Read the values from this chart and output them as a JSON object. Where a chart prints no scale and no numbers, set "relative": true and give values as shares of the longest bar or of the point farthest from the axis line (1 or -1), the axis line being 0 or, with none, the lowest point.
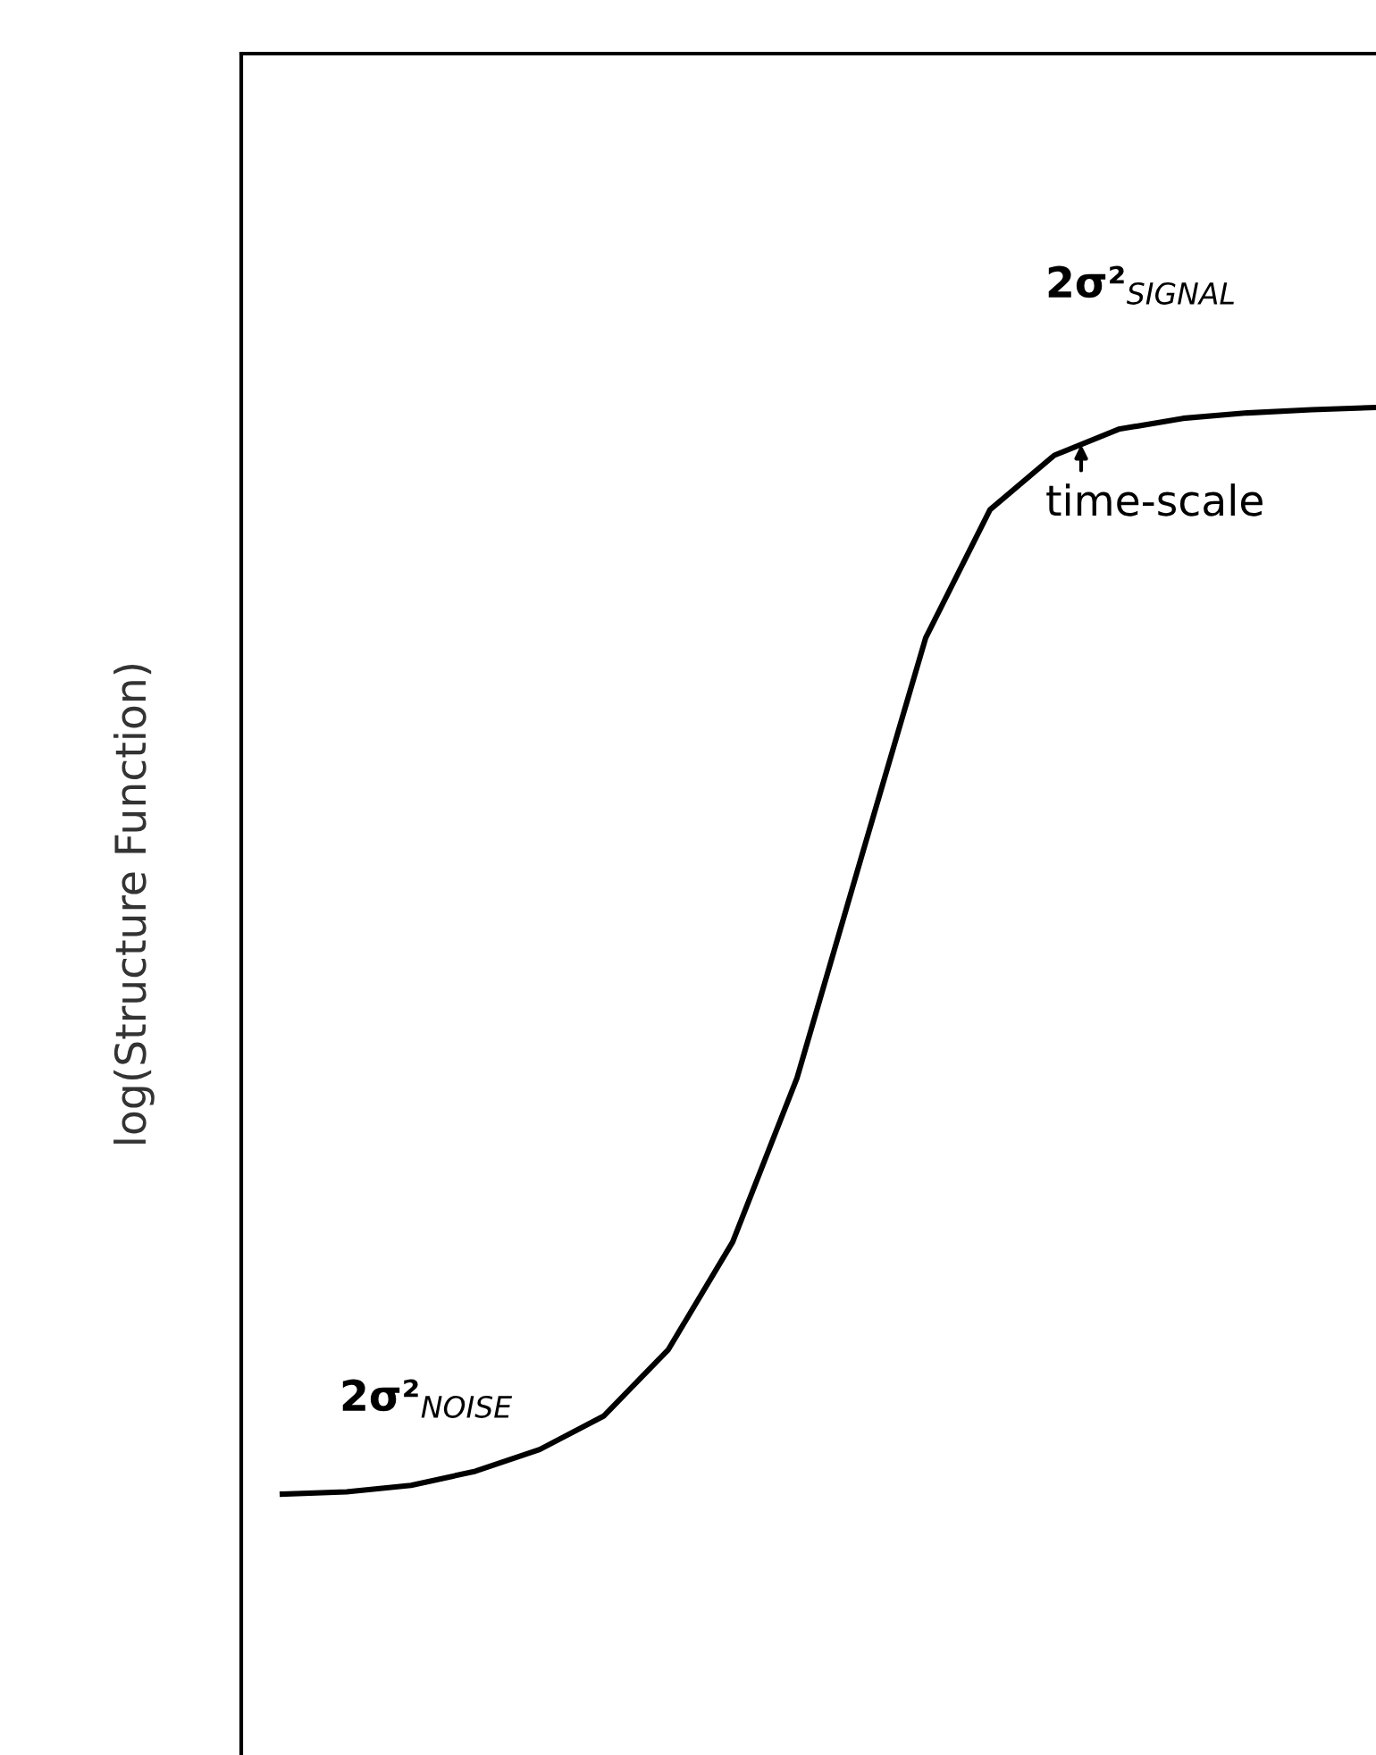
{
  "chart_data": {
    "type": "line",
    "relative": true,
    "ylabel": "log(Structure Function)",
    "categories": [
      null,
      null,
      null,
      null,
      null,
      null,
      null,
      null,
      null,
      null,
      null,
      null,
      null,
      null,
      null,
      null,
      null,
      null
    ],
    "series": [
      {
        "color": "#000000",
        "values": [
          0,
          0.002,
          0.008,
          0.021,
          0.041,
          0.072,
          0.133,
          0.232,
          0.383,
          0.586,
          0.788,
          0.906,
          0.956,
          0.98,
          0.99,
          0.995,
          0.998,
          1
        ]
      }
    ],
    "annotations": [
      "2σ²$_{SIGNAL}$",
      "time-scale",
      "2σ²$_{NOISE}$"
    ],
    "legend": false,
    "marker": "none",
    "line_style": "solid"
  }
}
